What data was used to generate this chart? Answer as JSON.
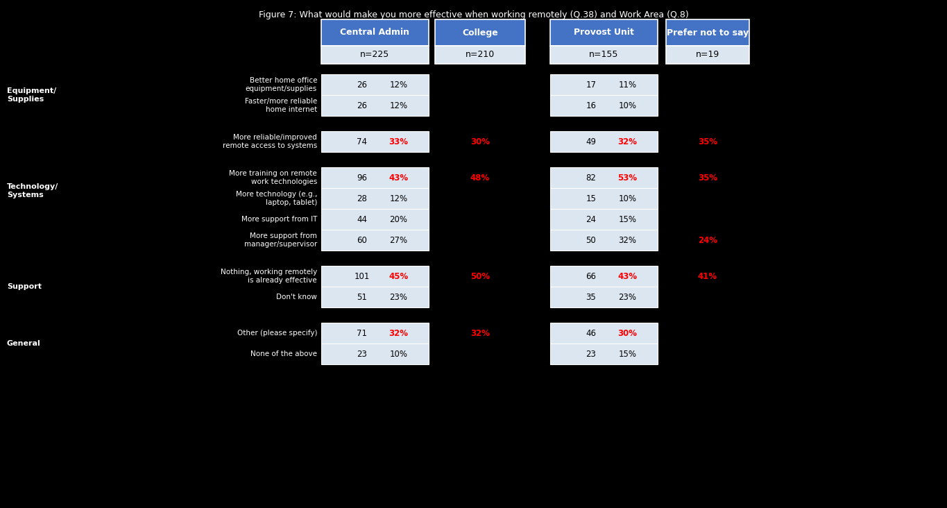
{
  "title": "Figure 7: What would make you more effective when working remotely (Q.38) and Work Area (Q.8)",
  "columns": [
    "Central Admin",
    "College",
    "Provost Unit",
    "Prefer not to say"
  ],
  "col_n": [
    "n=225",
    "n=210",
    "n=155",
    "n=19"
  ],
  "col_has_box": [
    true,
    false,
    true,
    false
  ],
  "rows": [
    {
      "label": "Better home office equipment/supplies",
      "central_admin": {
        "n": 26,
        "pct": "12%",
        "highlight": false
      },
      "college": {
        "n": null,
        "pct": null,
        "highlight": false
      },
      "provost_unit": {
        "n": 17,
        "pct": "11%",
        "highlight": false
      },
      "prefer_not": {
        "n": null,
        "pct": null,
        "highlight": false
      },
      "group": 0,
      "extra_top": false
    },
    {
      "label": "Faster/more reliable home internet",
      "central_admin": {
        "n": 26,
        "pct": "12%",
        "highlight": false
      },
      "college": {
        "n": null,
        "pct": null,
        "highlight": false
      },
      "provost_unit": {
        "n": 16,
        "pct": "10%",
        "highlight": false
      },
      "prefer_not": {
        "n": null,
        "pct": null,
        "highlight": false
      },
      "group": 0,
      "extra_top": false
    },
    {
      "label": "More reliable/improved remote access to systems",
      "central_admin": {
        "n": 74,
        "pct": "33%",
        "highlight": true
      },
      "college": {
        "n": null,
        "pct": "30%",
        "highlight": true
      },
      "provost_unit": {
        "n": 49,
        "pct": "32%",
        "highlight": true
      },
      "prefer_not": {
        "n": null,
        "pct": "35%",
        "highlight": true
      },
      "group": 1,
      "extra_top": true
    },
    {
      "label": "More training on remote work technologies",
      "central_admin": {
        "n": 96,
        "pct": "43%",
        "highlight": true
      },
      "college": {
        "n": null,
        "pct": "48%",
        "highlight": true
      },
      "provost_unit": {
        "n": 82,
        "pct": "53%",
        "highlight": true
      },
      "prefer_not": {
        "n": null,
        "pct": "35%",
        "highlight": true
      },
      "group": 2,
      "extra_top": true
    },
    {
      "label": "More technology (e.g., laptop, tablet)",
      "central_admin": {
        "n": 28,
        "pct": "12%",
        "highlight": false
      },
      "college": {
        "n": null,
        "pct": null,
        "highlight": false
      },
      "provost_unit": {
        "n": 15,
        "pct": "10%",
        "highlight": false
      },
      "prefer_not": {
        "n": null,
        "pct": null,
        "highlight": false
      },
      "group": 2,
      "extra_top": false
    },
    {
      "label": "More support from IT",
      "central_admin": {
        "n": 44,
        "pct": "20%",
        "highlight": false
      },
      "college": {
        "n": null,
        "pct": null,
        "highlight": false
      },
      "provost_unit": {
        "n": 24,
        "pct": "15%",
        "highlight": false
      },
      "prefer_not": {
        "n": null,
        "pct": null,
        "highlight": false
      },
      "group": 2,
      "extra_top": false
    },
    {
      "label": "More support from manager/supervisor",
      "central_admin": {
        "n": 60,
        "pct": "27%",
        "highlight": false
      },
      "college": {
        "n": null,
        "pct": null,
        "highlight": false
      },
      "provost_unit": {
        "n": 50,
        "pct": "32%",
        "highlight": false
      },
      "prefer_not": {
        "n": null,
        "pct": "24%",
        "highlight": true
      },
      "group": 2,
      "extra_top": false
    },
    {
      "label": "Nothing, working remotely is already effective",
      "central_admin": {
        "n": 101,
        "pct": "45%",
        "highlight": true
      },
      "college": {
        "n": null,
        "pct": "50%",
        "highlight": true
      },
      "provost_unit": {
        "n": 66,
        "pct": "43%",
        "highlight": true
      },
      "prefer_not": {
        "n": null,
        "pct": "41%",
        "highlight": true
      },
      "group": 3,
      "extra_top": true
    },
    {
      "label": "Don't know",
      "central_admin": {
        "n": 51,
        "pct": "23%",
        "highlight": false
      },
      "college": {
        "n": null,
        "pct": null,
        "highlight": false
      },
      "provost_unit": {
        "n": 35,
        "pct": "23%",
        "highlight": false
      },
      "prefer_not": {
        "n": null,
        "pct": null,
        "highlight": false
      },
      "group": 3,
      "extra_top": false
    },
    {
      "label": "Other (please specify)",
      "central_admin": {
        "n": 71,
        "pct": "32%",
        "highlight": true
      },
      "college": {
        "n": null,
        "pct": "32%",
        "highlight": true
      },
      "provost_unit": {
        "n": 46,
        "pct": "30%",
        "highlight": true
      },
      "prefer_not": {
        "n": null,
        "pct": null,
        "highlight": false
      },
      "group": 4,
      "extra_top": true
    },
    {
      "label": "None of the above",
      "central_admin": {
        "n": 23,
        "pct": "10%",
        "highlight": false
      },
      "college": {
        "n": null,
        "pct": null,
        "highlight": false
      },
      "provost_unit": {
        "n": 23,
        "pct": "15%",
        "highlight": false
      },
      "prefer_not": {
        "n": null,
        "pct": null,
        "highlight": false
      },
      "group": 4,
      "extra_top": false
    }
  ],
  "row_labels": [
    "Better home office\nequipment/supplies",
    "Faster/more reliable\nhome internet",
    "More reliable/improved\nremote access to systems",
    "More training on remote\nwork technologies",
    "More technology (e.g.,\nlaptop, tablet)",
    "More support from IT",
    "More support from\nmanager/supervisor",
    "Nothing, working remotely\nis already effective",
    "Don't know",
    "Other (please specify)",
    "None of the above"
  ],
  "section_info": [
    {
      "label": "Equipment/\nSupplies",
      "rows": [
        0,
        1
      ]
    },
    {
      "label": "Technology/\nSystems",
      "rows": [
        2,
        3,
        4,
        5,
        6
      ]
    },
    {
      "label": "Support",
      "rows": [
        7,
        8
      ]
    },
    {
      "label": "General",
      "rows": [
        9,
        10
      ]
    }
  ],
  "header_bg": "#4472C4",
  "header_text": "#ffffff",
  "cell_bg": "#dce6f1",
  "highlight_color": "#ff0000",
  "normal_color": "#000000",
  "bg_color": "#000000"
}
